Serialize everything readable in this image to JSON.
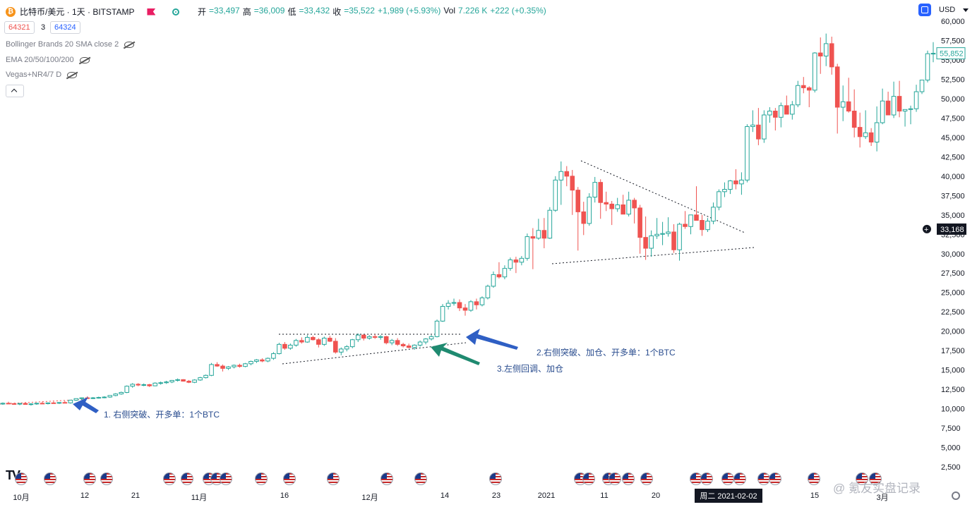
{
  "header": {
    "symbol": "比特币/美元 · 1天 · BITSTAMP",
    "open_label": "开",
    "open": "=33,497",
    "high_label": "高",
    "high": "=36,009",
    "low_label": "低",
    "low": "=33,432",
    "close_label": "收",
    "close": "=35,522",
    "change": "+1,989 (+5.93%)",
    "vol_label": "Vol",
    "vol": "7.226 K",
    "vol_change": "+222 (+0.35%)",
    "currency": "USD",
    "sell_price": "64321",
    "spread": "3",
    "buy_price": "64324",
    "flag_icon": "flag-icon",
    "status_icon": "circle-dot-icon"
  },
  "indicators": [
    {
      "label": "Bollinger Brands 20 SMA close 2"
    },
    {
      "label": "EMA 20/50/100/200"
    },
    {
      "label": "Vegas+NR4/7 D"
    }
  ],
  "colors": {
    "up": "#26a69a",
    "down": "#ef5350",
    "arrow_blue": "#2f5fc4",
    "arrow_green": "#1f8a70",
    "text_ann": "#2a4d8f"
  },
  "chart_data": {
    "type": "candlestick",
    "title": "",
    "xlabel": "",
    "ylabel": "",
    "ylim": [
      0,
      60000
    ],
    "y_ticks": [
      "60,000",
      "57,500",
      "55,000",
      "52,500",
      "50,000",
      "47,500",
      "45,000",
      "42,500",
      "40,000",
      "37,500",
      "35,000",
      "32,500",
      "30,000",
      "27,500",
      "25,000",
      "22,500",
      "20,000",
      "17,500",
      "15,000",
      "12,500",
      "10,000",
      "7,500",
      "5,000",
      "2,500"
    ],
    "y_tick_values": [
      60000,
      57500,
      55000,
      52500,
      50000,
      47500,
      45000,
      42500,
      40000,
      37500,
      35000,
      32500,
      30000,
      27500,
      25000,
      22500,
      20000,
      17500,
      15000,
      12500,
      10000,
      7500,
      5000,
      2500
    ],
    "x_ticks": [
      "10月",
      "12",
      "21",
      "11月",
      "16",
      "12月",
      "14",
      "23",
      "2021",
      "11",
      "20",
      "",
      "15",
      "3月",
      ""
    ],
    "x_highlight": "周二 2021-02-02",
    "last_price": "55,852",
    "crosshair_price": "33,168",
    "crosshair_value": 33168,
    "grid": false,
    "candles": [
      [
        10600,
        10800,
        10500,
        10700
      ],
      [
        10700,
        10900,
        10600,
        10650
      ],
      [
        10650,
        10750,
        10500,
        10600
      ],
      [
        10600,
        10700,
        10450,
        10680
      ],
      [
        10680,
        10800,
        10550,
        10550
      ],
      [
        10550,
        10700,
        10400,
        10620
      ],
      [
        10620,
        10750,
        10500,
        10700
      ],
      [
        10700,
        10900,
        10600,
        10650
      ],
      [
        10650,
        10800,
        10550,
        10750
      ],
      [
        10750,
        10900,
        10650,
        10700
      ],
      [
        10700,
        10850,
        10600,
        10800
      ],
      [
        10800,
        11000,
        10700,
        10750
      ],
      [
        10750,
        10900,
        10650,
        11100
      ],
      [
        11100,
        11300,
        11000,
        11300
      ],
      [
        11300,
        11450,
        11150,
        11400
      ],
      [
        11400,
        11600,
        11300,
        11350
      ],
      [
        11350,
        11500,
        11250,
        11400
      ],
      [
        11400,
        11550,
        11300,
        11450
      ],
      [
        11450,
        11600,
        11350,
        11500
      ],
      [
        11500,
        11700,
        11400,
        11700
      ],
      [
        11700,
        12000,
        11600,
        11900
      ],
      [
        11900,
        12200,
        11800,
        12100
      ],
      [
        12100,
        13000,
        12000,
        12900
      ],
      [
        12900,
        13300,
        12700,
        13150
      ],
      [
        13150,
        13300,
        12900,
        13050
      ],
      [
        13050,
        13250,
        12900,
        13100
      ],
      [
        13100,
        13200,
        12800,
        12950
      ],
      [
        12950,
        13400,
        12900,
        13300
      ],
      [
        13300,
        13500,
        13100,
        13350
      ],
      [
        13350,
        13600,
        13200,
        13450
      ],
      [
        13450,
        13700,
        13300,
        13650
      ],
      [
        13650,
        13900,
        13500,
        13750
      ],
      [
        13750,
        13800,
        13500,
        13550
      ],
      [
        13550,
        13700,
        13300,
        13400
      ],
      [
        13400,
        13800,
        13300,
        13700
      ],
      [
        13700,
        14100,
        13600,
        14000
      ],
      [
        14000,
        14400,
        13900,
        14300
      ],
      [
        14300,
        15900,
        14200,
        15700
      ],
      [
        15700,
        16000,
        15400,
        15500
      ],
      [
        15500,
        15700,
        14800,
        15200
      ],
      [
        15200,
        15500,
        15000,
        15400
      ],
      [
        15400,
        15700,
        15200,
        15600
      ],
      [
        15600,
        15800,
        15300,
        15450
      ],
      [
        15450,
        15900,
        15350,
        15800
      ],
      [
        15800,
        16200,
        15600,
        16100
      ],
      [
        16100,
        16400,
        15900,
        16300
      ],
      [
        16300,
        16500,
        16000,
        16150
      ],
      [
        16150,
        16600,
        16000,
        16500
      ],
      [
        16500,
        17300,
        16300,
        17100
      ],
      [
        17100,
        18500,
        17000,
        18300
      ],
      [
        18300,
        18600,
        17600,
        17800
      ],
      [
        17800,
        18400,
        17600,
        18200
      ],
      [
        18200,
        19000,
        18000,
        18800
      ],
      [
        18800,
        19200,
        18400,
        18600
      ],
      [
        18600,
        19500,
        18500,
        19200
      ],
      [
        19200,
        19400,
        18800,
        18900
      ],
      [
        18900,
        19100,
        17900,
        18300
      ],
      [
        18300,
        19300,
        18100,
        19100
      ],
      [
        19100,
        19400,
        18600,
        18700
      ],
      [
        18700,
        19100,
        17100,
        17300
      ],
      [
        17300,
        17900,
        16900,
        17700
      ],
      [
        17700,
        18200,
        17400,
        18000
      ],
      [
        18000,
        19000,
        17800,
        18900
      ],
      [
        18900,
        19700,
        18600,
        19500
      ],
      [
        19500,
        19600,
        18800,
        19100
      ],
      [
        19100,
        19500,
        18900,
        19300
      ],
      [
        19300,
        19600,
        19000,
        19200
      ],
      [
        19200,
        19500,
        18900,
        19300
      ],
      [
        19300,
        19400,
        18300,
        18500
      ],
      [
        18500,
        19000,
        18200,
        18800
      ],
      [
        18800,
        19100,
        18100,
        18300
      ],
      [
        18300,
        18500,
        17900,
        18100
      ],
      [
        18100,
        18400,
        17800,
        17900
      ],
      [
        17900,
        18300,
        17600,
        18200
      ],
      [
        18200,
        18800,
        18000,
        18600
      ],
      [
        18600,
        19100,
        18300,
        19000
      ],
      [
        19000,
        19500,
        18800,
        19300
      ],
      [
        19300,
        21500,
        19200,
        21300
      ],
      [
        21300,
        23500,
        21200,
        23200
      ],
      [
        23200,
        24000,
        22800,
        23600
      ],
      [
        23600,
        24200,
        23300,
        23700
      ],
      [
        23700,
        24100,
        22600,
        23000
      ],
      [
        23000,
        23500,
        22000,
        22700
      ],
      [
        22700,
        24000,
        22500,
        23800
      ],
      [
        23800,
        24200,
        22800,
        23400
      ],
      [
        23400,
        24500,
        23200,
        24300
      ],
      [
        24300,
        26000,
        24100,
        25800
      ],
      [
        25800,
        27700,
        25600,
        27300
      ],
      [
        27300,
        28900,
        26800,
        27000
      ],
      [
        27000,
        28500,
        26700,
        28100
      ],
      [
        28100,
        29500,
        27800,
        29200
      ],
      [
        29200,
        29600,
        27500,
        28900
      ],
      [
        28900,
        29700,
        28500,
        29400
      ],
      [
        29400,
        32600,
        29100,
        32200
      ],
      [
        32200,
        33300,
        28000,
        32000
      ],
      [
        32000,
        34500,
        31800,
        33000
      ],
      [
        33000,
        34600,
        30700,
        32000
      ],
      [
        32000,
        36000,
        31900,
        35600
      ],
      [
        35600,
        40000,
        35400,
        39500
      ],
      [
        39500,
        41900,
        36300,
        40600
      ],
      [
        40600,
        41300,
        38700,
        40000
      ],
      [
        40000,
        40800,
        35000,
        38200
      ],
      [
        38200,
        38600,
        30400,
        35400
      ],
      [
        35400,
        36700,
        32400,
        33900
      ],
      [
        33900,
        37800,
        33600,
        37300
      ],
      [
        37300,
        39900,
        36600,
        39200
      ],
      [
        39200,
        39600,
        34500,
        36600
      ],
      [
        36600,
        38000,
        35500,
        36400
      ],
      [
        36400,
        36800,
        33700,
        35800
      ],
      [
        35800,
        37200,
        35400,
        36300
      ],
      [
        36300,
        37600,
        35700,
        35100
      ],
      [
        35100,
        38000,
        34800,
        36900
      ],
      [
        36900,
        37200,
        33900,
        35900
      ],
      [
        35900,
        36300,
        30000,
        32100
      ],
      [
        32100,
        34800,
        29200,
        30700
      ],
      [
        30700,
        33000,
        29600,
        32300
      ],
      [
        32300,
        34600,
        31900,
        32500
      ],
      [
        32500,
        34100,
        31100,
        32600
      ],
      [
        32600,
        34700,
        32200,
        32800
      ],
      [
        32800,
        33800,
        30100,
        30500
      ],
      [
        30500,
        34000,
        29100,
        33800
      ],
      [
        33800,
        35500,
        33200,
        33500
      ],
      [
        33500,
        34600,
        32500,
        35000
      ],
      [
        35000,
        38700,
        34700,
        34300
      ],
      [
        34300,
        35000,
        32300,
        33100
      ],
      [
        33100,
        34600,
        32800,
        34200
      ],
      [
        34200,
        36600,
        33800,
        36000
      ],
      [
        36000,
        38300,
        35600,
        38000
      ],
      [
        38000,
        39200,
        37300,
        38300
      ],
      [
        38300,
        39500,
        37700,
        39400
      ],
      [
        39400,
        40900,
        38300,
        39000
      ],
      [
        39000,
        40500,
        37600,
        39500
      ],
      [
        39500,
        46700,
        39200,
        46400
      ],
      [
        46400,
        48500,
        45700,
        46600
      ],
      [
        46600,
        48800,
        44000,
        44800
      ],
      [
        44800,
        48500,
        44300,
        47900
      ],
      [
        47900,
        48900,
        46900,
        48400
      ],
      [
        48400,
        48800,
        45900,
        47600
      ],
      [
        47600,
        49500,
        46300,
        49100
      ],
      [
        49100,
        50400,
        48300,
        48000
      ],
      [
        48000,
        49700,
        47300,
        49200
      ],
      [
        49200,
        52300,
        48900,
        51700
      ],
      [
        51700,
        52800,
        50700,
        51400
      ],
      [
        51400,
        51600,
        48900,
        51100
      ],
      [
        51100,
        56000,
        50800,
        55900
      ],
      [
        55900,
        57900,
        53200,
        55500
      ],
      [
        55500,
        58400,
        54200,
        57100
      ],
      [
        57100,
        58000,
        53100,
        54100
      ],
      [
        54100,
        54500,
        45500,
        48900
      ],
      [
        48900,
        51700,
        47100,
        49600
      ],
      [
        49600,
        52700,
        48200,
        48400
      ],
      [
        48400,
        51200,
        45000,
        46300
      ],
      [
        46300,
        48200,
        43700,
        45100
      ],
      [
        45100,
        48500,
        44800,
        45600
      ],
      [
        45600,
        46200,
        43900,
        44400
      ],
      [
        44400,
        49000,
        43200,
        46900
      ],
      [
        46900,
        51300,
        46700,
        49700
      ],
      [
        49700,
        50900,
        48100,
        47900
      ],
      [
        47900,
        52200,
        47500,
        50300
      ],
      [
        50300,
        52300,
        47600,
        48400
      ],
      [
        48400,
        48600,
        46400,
        48600
      ],
      [
        48600,
        49100,
        46700,
        48700
      ],
      [
        48700,
        51800,
        48300,
        50900
      ],
      [
        50900,
        52400,
        50600,
        52400
      ],
      [
        52400,
        56200,
        52100,
        55800
      ],
      [
        55800,
        57300,
        54700,
        55852
      ]
    ]
  },
  "annotations": [
    {
      "text": "1. 右侧突破、开多单：1个BTC"
    },
    {
      "text": "2.右侧突破、加仓、开多单：1个BTC"
    },
    {
      "text": "3.左侧回调、加仓"
    }
  ],
  "watermark": "@ 氪友实盘记录",
  "logo": "TV",
  "settings_icon": "gear-icon",
  "scale_icon": "scale-icon"
}
